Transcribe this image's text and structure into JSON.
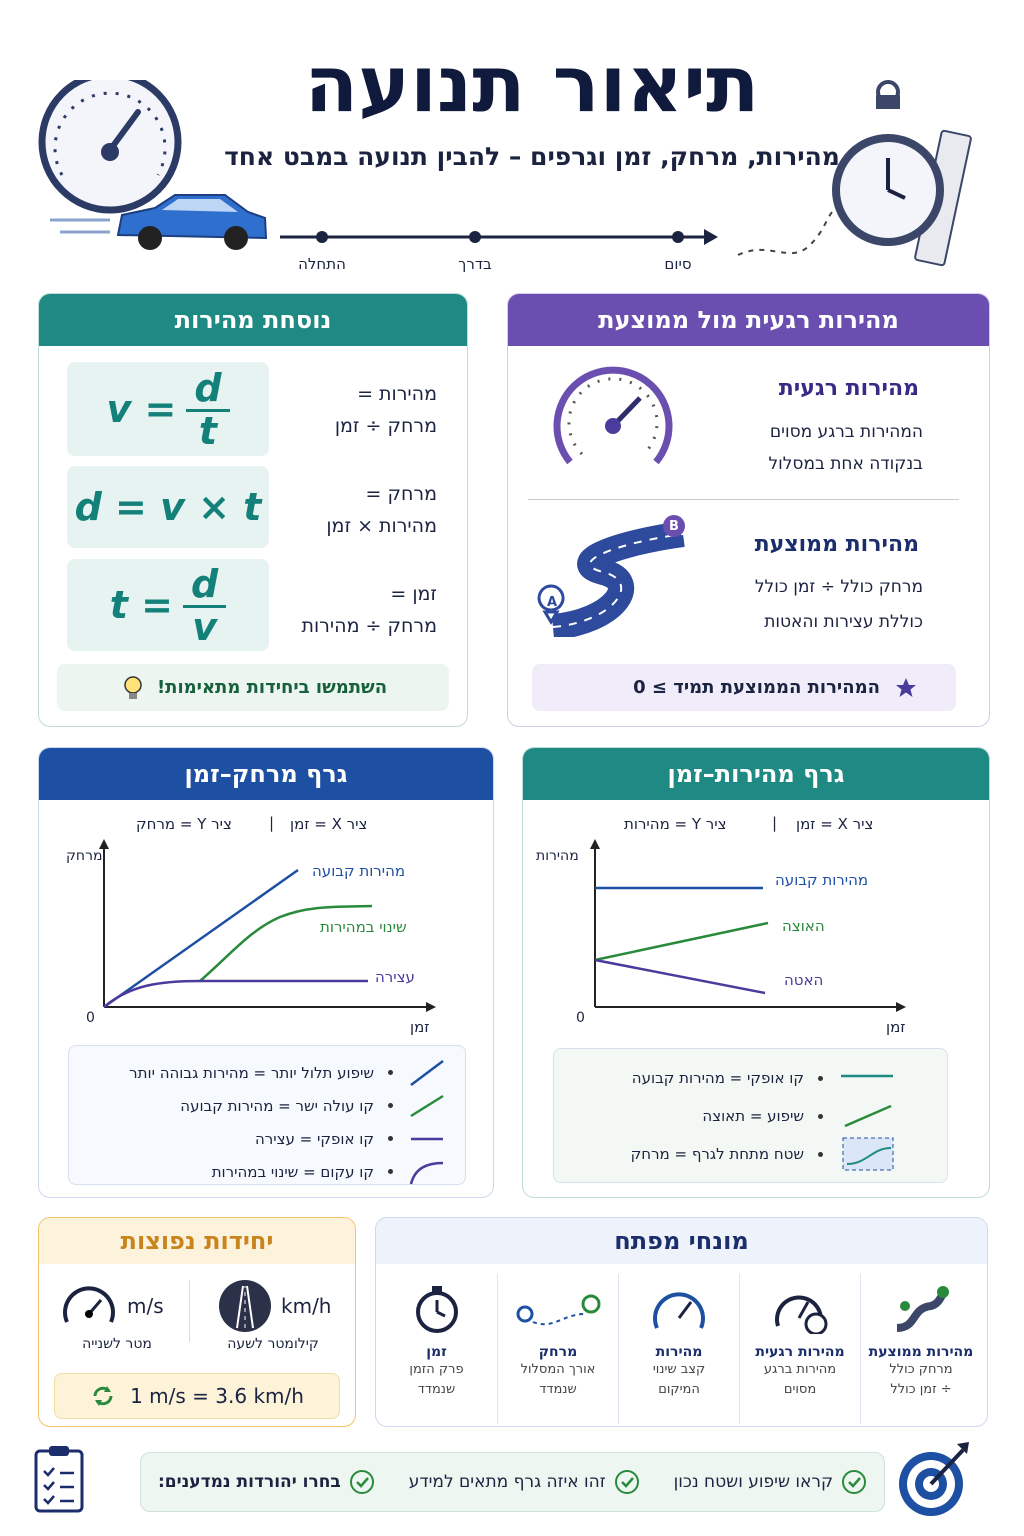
{
  "header": {
    "title": "תיאור תנועה",
    "subtitle": "מהירות, מרחק, זמן וגרפים – להבין תנועה במבט אחד",
    "timeline": [
      "התחלה",
      "בדרך",
      "סיום"
    ]
  },
  "formula_card": {
    "title": "נוסחת מהירות",
    "formulas": [
      {
        "lhs": "v =",
        "num": "d",
        "den": "t",
        "label1": "מהירות =",
        "label2": "מרחק ÷ זמן"
      },
      {
        "expr": "d = v × t",
        "label1": "מרחק =",
        "label2": "מהירות × זמן"
      },
      {
        "lhs": "t =",
        "num": "d",
        "den": "v",
        "label1": "זמן =",
        "label2": "מרחק ÷ מהירות"
      }
    ],
    "tip": "השתמשו ביחידות מתאימות!"
  },
  "speed_card": {
    "title": "מהירות רגעית מול ממוצעת",
    "items": [
      {
        "title": "מהירות רגעית",
        "lines": [
          "המהירות ברגע מסוים",
          "בנקודה אחת במסלול"
        ]
      },
      {
        "title": "מהירות ממוצעת",
        "lines": [
          "מרחק כולל ÷ זמן כולל",
          "כוללת עצירות והאטות"
        ]
      }
    ],
    "pins": [
      "A",
      "B"
    ],
    "note": "המהירות הממוצעת תמיד ≥ 0"
  },
  "distance_graph": {
    "title": "גרף מרחק–זמן",
    "axes": [
      "ציר X = זמן",
      "ציר Y = מרחק"
    ],
    "y_label": "מרחק",
    "x_label": "זמן",
    "origin": "0",
    "lines": [
      "מהירות קבועה",
      "שינוי במהירות",
      "עצירה"
    ],
    "legend": [
      "שיפוע תלול יותר = מהירות גבוהה יותר",
      "קו עולה ישר = מהירות קבועה",
      "קו אופקי = עצירה",
      "קו עקום = שינוי במהירות"
    ]
  },
  "speed_graph": {
    "title": "גרף מהירות–זמן",
    "axes": [
      "ציר X = זמן",
      "ציר Y = מהירות"
    ],
    "y_label": "מהירות",
    "x_label": "זמן",
    "origin": "0",
    "lines": [
      "מהירות קבועה",
      "האוצה",
      "האטה"
    ],
    "legend": [
      "קו אופקי = מהירות קבועה",
      "שיפוע = תאוצה",
      "שטח מתחת לגרף = מרחק"
    ]
  },
  "units_card": {
    "title": "יחידות נפוצות",
    "units": [
      {
        "symbol": "m/s",
        "name": "מטר לשנייה"
      },
      {
        "symbol": "km/h",
        "name": "קילומטר לשעה"
      }
    ],
    "conversion": "1 m/s = 3.6 km/h"
  },
  "terms_card": {
    "title": "מונחי מפתח",
    "terms": [
      {
        "title": "מהירות ממוצעת",
        "lines": [
          "מרחק כולל",
          "÷ זמן כולל"
        ]
      },
      {
        "title": "מהירות רגעית",
        "lines": [
          "מהירות ברגע",
          "מסוים"
        ]
      },
      {
        "title": "מהירות",
        "lines": [
          "קצב שינוי",
          "המיקום"
        ]
      },
      {
        "title": "מרחק",
        "lines": [
          "אורך המסלול",
          "שנמדד"
        ]
      },
      {
        "title": "זמן",
        "lines": [
          "פרק הזמן",
          "שנמדד"
        ]
      }
    ]
  },
  "footer": {
    "items": [
      "בחרו יהורדות נמדענים:",
      "זהו איזה גרף מתאים למידע",
      "קראו שיפוע ושטח נכון"
    ]
  }
}
